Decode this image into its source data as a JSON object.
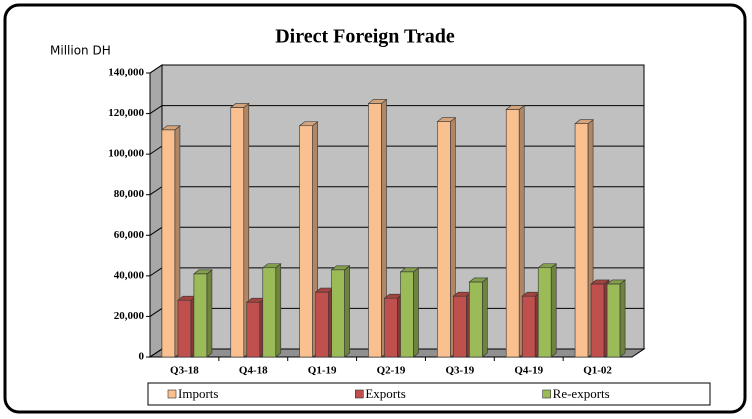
{
  "chart_data": {
    "type": "bar3d",
    "title": "Direct Foreign Trade",
    "y_axis_label": "Million DH",
    "categories": [
      "Q3-18",
      "Q4-18",
      "Q1-19",
      "Q2-19",
      "Q3-19",
      "Q4-19",
      "Q1-02"
    ],
    "series": [
      {
        "name": "Imports",
        "color": "#fbc08f",
        "values": [
          112000,
          123000,
          114000,
          125000,
          116000,
          122000,
          115000
        ]
      },
      {
        "name": "Exports",
        "color": "#c0504d",
        "values": [
          28000,
          27000,
          32000,
          29000,
          30000,
          30000,
          36000
        ]
      },
      {
        "name": "Re-exports",
        "color": "#9bbb59",
        "values": [
          41000,
          44000,
          43000,
          42000,
          37000,
          44000,
          36000
        ]
      }
    ],
    "ylim": [
      0,
      140000
    ],
    "yticks": [
      {
        "value": 0,
        "label": "0"
      },
      {
        "value": 20000,
        "label": "20,000"
      },
      {
        "value": 40000,
        "label": "40,000"
      },
      {
        "value": 60000,
        "label": "60,000"
      },
      {
        "value": 80000,
        "label": "80,000"
      },
      {
        "value": 100000,
        "label": "100,000"
      },
      {
        "value": 120000,
        "label": "120,000"
      },
      {
        "value": 140000,
        "label": "140,000"
      }
    ],
    "grid": true,
    "legend": "bottom"
  }
}
